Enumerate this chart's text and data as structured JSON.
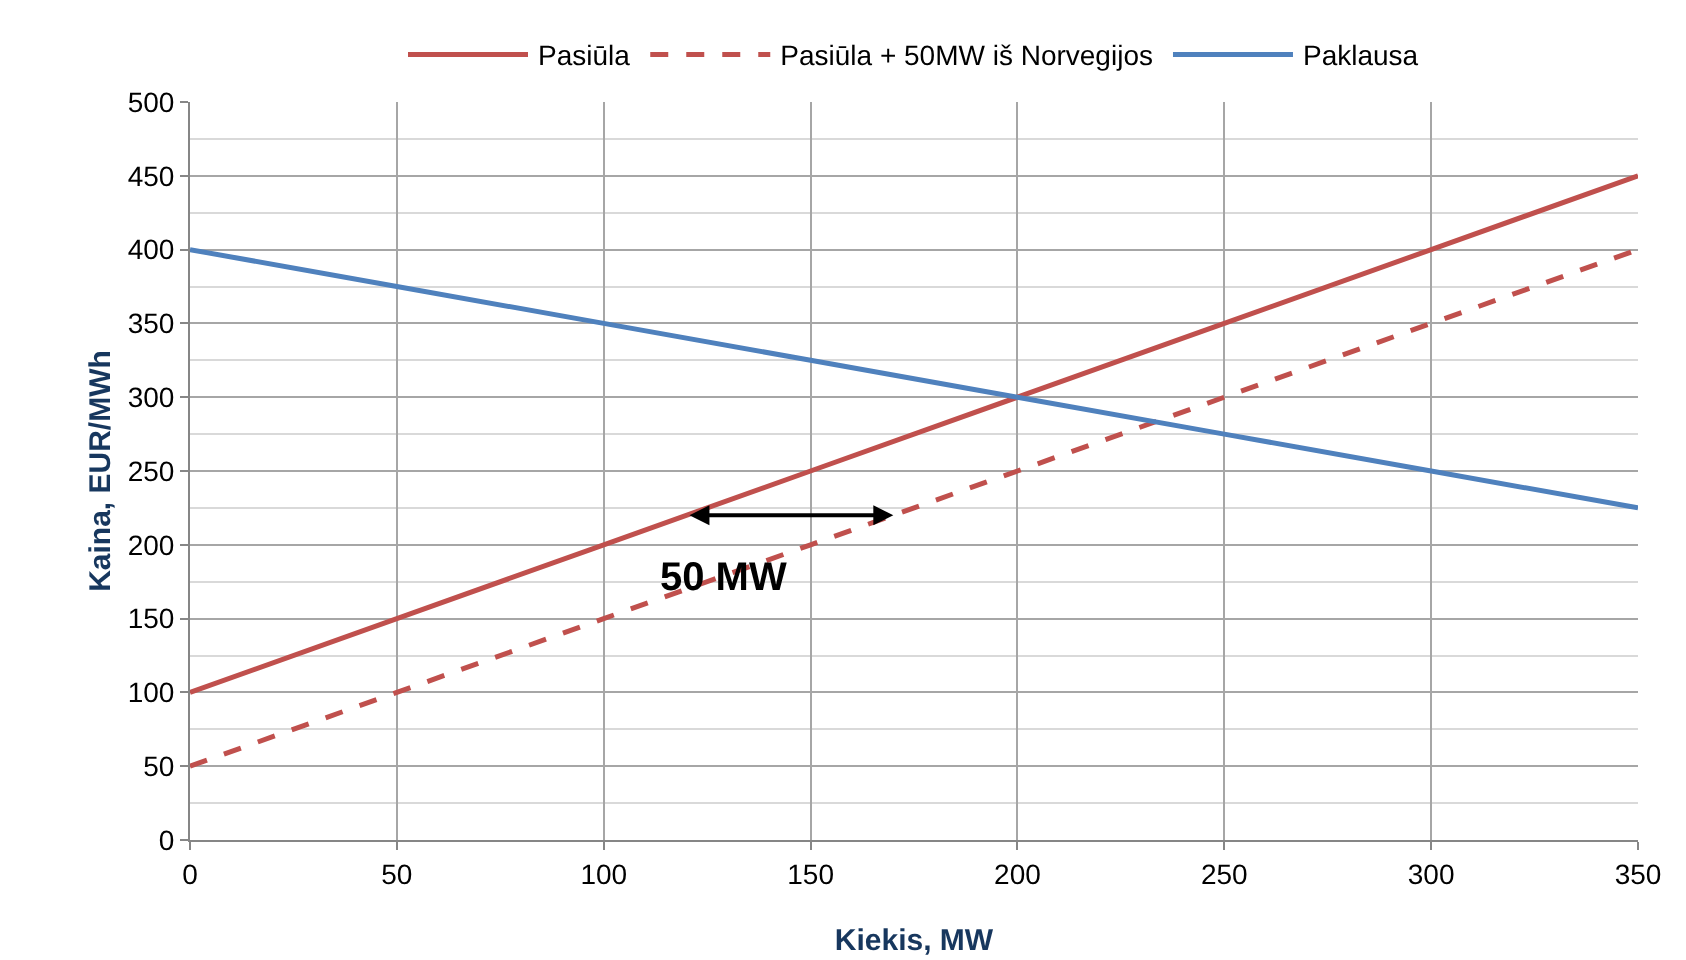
{
  "chart_data": {
    "type": "line",
    "xlabel": "Kiekis, MW",
    "ylabel": "Kaina, EUR/MWh",
    "xlim": [
      0,
      350
    ],
    "xticks": [
      0,
      50,
      100,
      150,
      200,
      250,
      300,
      350
    ],
    "ylim": [
      0,
      500
    ],
    "yticks": [
      0,
      50,
      100,
      150,
      200,
      250,
      300,
      350,
      400,
      450,
      500
    ],
    "grid": true,
    "legend": "top",
    "marker": "none",
    "x": [
      0,
      50,
      100,
      150,
      200,
      250,
      300,
      350
    ],
    "series": [
      {
        "name": "Pasiūla",
        "color": "#c0504d",
        "values": [
          100,
          150,
          200,
          250,
          300,
          350,
          400,
          450
        ],
        "line_style": "solid"
      },
      {
        "name": "Pasiūla + 50MW iš Norvegijos",
        "color": "#c0504d",
        "values": [
          50,
          100,
          150,
          200,
          250,
          300,
          350,
          400
        ],
        "line_style": "dashed"
      },
      {
        "name": "Paklausa",
        "color": "#4f81bd",
        "values": [
          400,
          375,
          350,
          325,
          300,
          275,
          250,
          225
        ],
        "line_style": "solid"
      }
    ],
    "annotations": [
      {
        "text": "50 MW",
        "x": 120,
        "y": 220
      }
    ]
  }
}
